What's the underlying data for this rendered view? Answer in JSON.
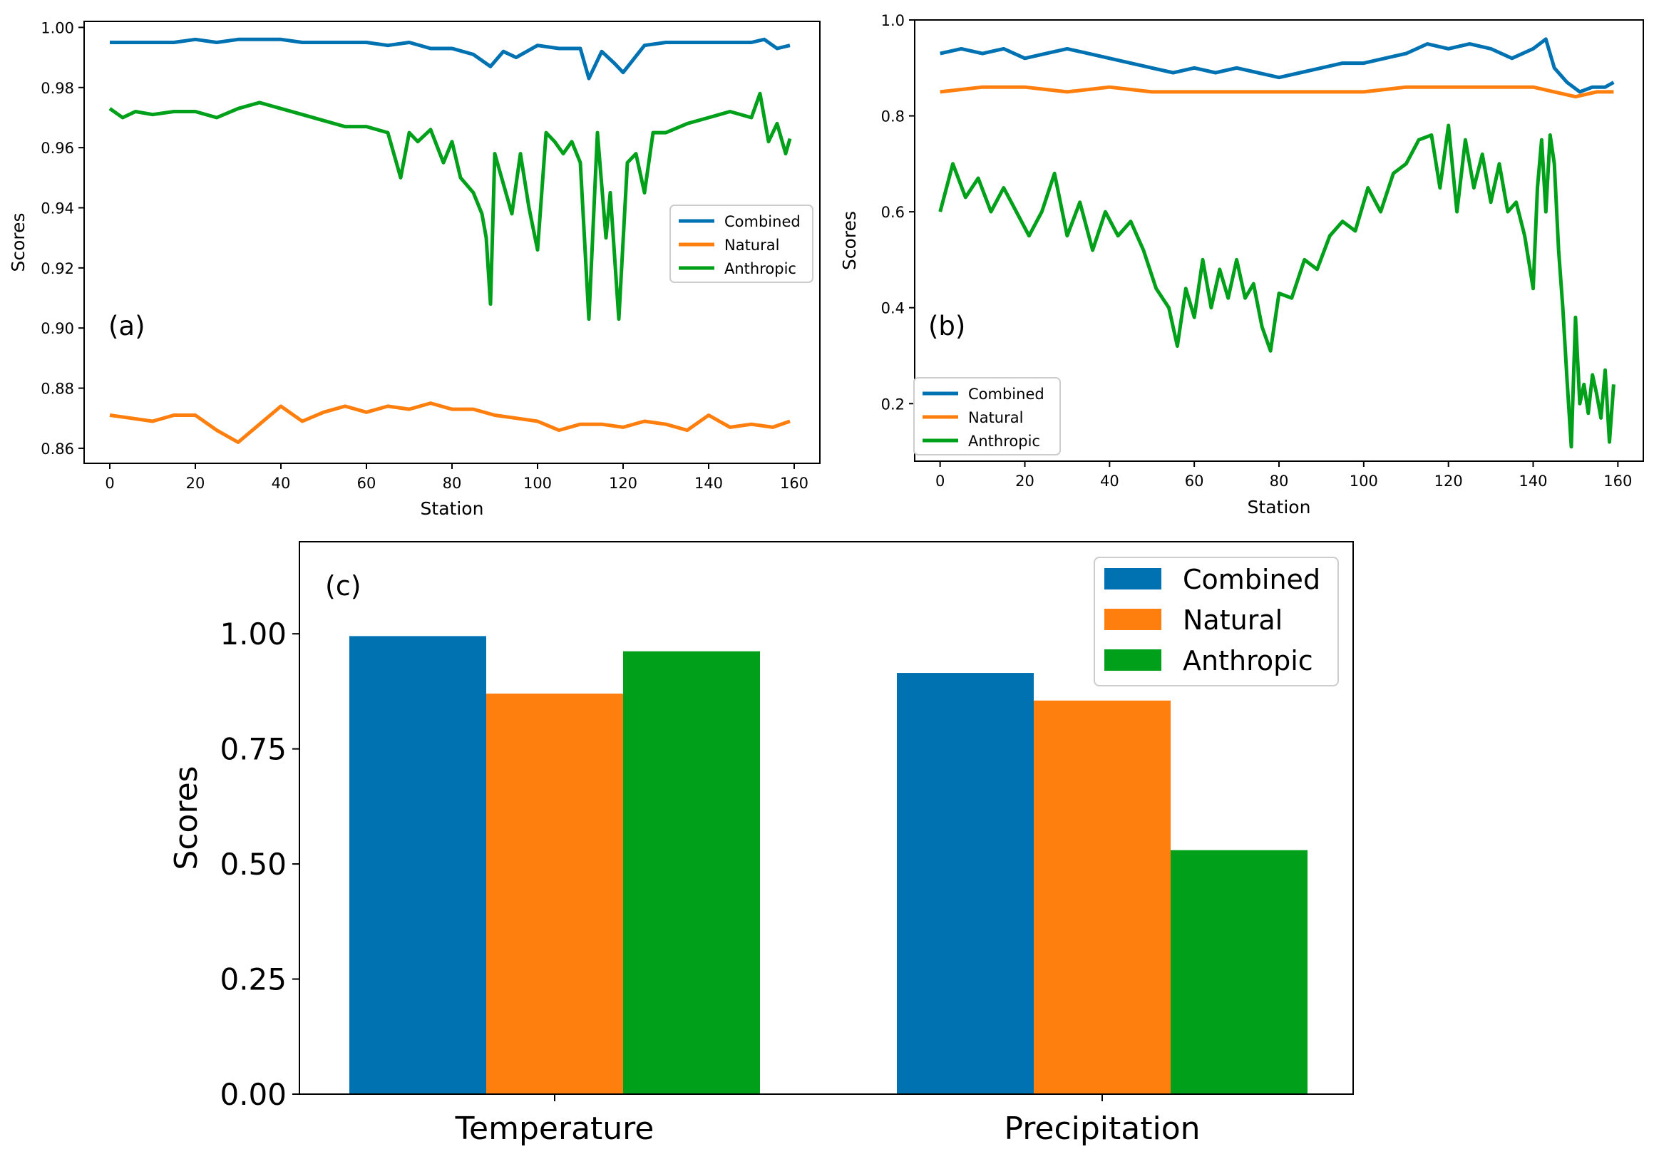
{
  "colors": {
    "Combined": "#0072b2",
    "Natural": "#ff7f0e",
    "Anthropic": "#00a01a"
  },
  "chart_data": [
    {
      "id": "a",
      "type": "line",
      "panel_label": "(a)",
      "xlabel": "Station",
      "ylabel": "Scores",
      "xlim": [
        -6,
        166
      ],
      "ylim": [
        0.855,
        1.002
      ],
      "xticks": [
        0,
        20,
        40,
        60,
        80,
        100,
        120,
        140,
        160
      ],
      "yticks": [
        0.86,
        0.88,
        0.9,
        0.92,
        0.94,
        0.96,
        0.98,
        1.0
      ],
      "ytick_labels": [
        "0.86",
        "0.88",
        "0.90",
        "0.92",
        "0.94",
        "0.96",
        "0.98",
        "1.00"
      ],
      "legend": "center-right",
      "series": [
        {
          "name": "Combined",
          "x": [
            0,
            5,
            10,
            15,
            20,
            25,
            30,
            35,
            40,
            45,
            50,
            55,
            60,
            65,
            70,
            75,
            80,
            85,
            89,
            92,
            95,
            100,
            105,
            110,
            112,
            115,
            118,
            120,
            125,
            130,
            135,
            140,
            145,
            150,
            153,
            156,
            159
          ],
          "values": [
            0.995,
            0.995,
            0.995,
            0.995,
            0.996,
            0.995,
            0.996,
            0.996,
            0.996,
            0.995,
            0.995,
            0.995,
            0.995,
            0.994,
            0.995,
            0.993,
            0.993,
            0.991,
            0.987,
            0.992,
            0.99,
            0.994,
            0.993,
            0.993,
            0.983,
            0.992,
            0.988,
            0.985,
            0.994,
            0.995,
            0.995,
            0.995,
            0.995,
            0.995,
            0.996,
            0.993,
            0.994
          ]
        },
        {
          "name": "Natural",
          "x": [
            0,
            5,
            10,
            15,
            20,
            25,
            30,
            35,
            40,
            45,
            50,
            55,
            60,
            65,
            70,
            75,
            80,
            85,
            90,
            95,
            100,
            105,
            110,
            115,
            120,
            125,
            130,
            135,
            140,
            145,
            150,
            155,
            159
          ],
          "values": [
            0.871,
            0.87,
            0.869,
            0.871,
            0.871,
            0.866,
            0.862,
            0.868,
            0.874,
            0.869,
            0.872,
            0.874,
            0.872,
            0.874,
            0.873,
            0.875,
            0.873,
            0.873,
            0.871,
            0.87,
            0.869,
            0.866,
            0.868,
            0.868,
            0.867,
            0.869,
            0.868,
            0.866,
            0.871,
            0.867,
            0.868,
            0.867,
            0.869
          ]
        },
        {
          "name": "Anthropic",
          "x": [
            0,
            3,
            6,
            10,
            15,
            20,
            25,
            30,
            35,
            40,
            45,
            50,
            55,
            60,
            65,
            68,
            70,
            72,
            75,
            78,
            80,
            82,
            85,
            87,
            88,
            89,
            90,
            92,
            94,
            96,
            98,
            100,
            102,
            104,
            106,
            108,
            110,
            112,
            114,
            116,
            117,
            119,
            121,
            123,
            125,
            127,
            130,
            135,
            140,
            145,
            150,
            152,
            154,
            156,
            158,
            159
          ],
          "values": [
            0.973,
            0.97,
            0.972,
            0.971,
            0.972,
            0.972,
            0.97,
            0.973,
            0.975,
            0.973,
            0.971,
            0.969,
            0.967,
            0.967,
            0.965,
            0.95,
            0.965,
            0.962,
            0.966,
            0.955,
            0.962,
            0.95,
            0.945,
            0.938,
            0.93,
            0.908,
            0.958,
            0.948,
            0.938,
            0.958,
            0.94,
            0.926,
            0.965,
            0.962,
            0.958,
            0.962,
            0.955,
            0.903,
            0.965,
            0.93,
            0.945,
            0.903,
            0.955,
            0.958,
            0.945,
            0.965,
            0.965,
            0.968,
            0.97,
            0.972,
            0.97,
            0.978,
            0.962,
            0.968,
            0.958,
            0.963
          ]
        }
      ]
    },
    {
      "id": "b",
      "type": "line",
      "panel_label": "(b)",
      "xlabel": "Station",
      "ylabel": "Scores",
      "xlim": [
        -6,
        166
      ],
      "ylim": [
        0.08,
        1.0
      ],
      "xticks": [
        0,
        20,
        40,
        60,
        80,
        100,
        120,
        140,
        160
      ],
      "yticks": [
        0.2,
        0.4,
        0.6,
        0.8,
        1.0
      ],
      "ytick_labels": [
        "0.2",
        "0.4",
        "0.6",
        "0.8",
        "1.0"
      ],
      "legend": "lower-left",
      "series": [
        {
          "name": "Combined",
          "x": [
            0,
            5,
            10,
            15,
            20,
            25,
            30,
            35,
            40,
            45,
            50,
            55,
            60,
            65,
            70,
            75,
            80,
            85,
            90,
            95,
            100,
            105,
            110,
            115,
            120,
            125,
            130,
            135,
            140,
            143,
            145,
            148,
            151,
            154,
            157,
            159
          ],
          "values": [
            0.93,
            0.94,
            0.93,
            0.94,
            0.92,
            0.93,
            0.94,
            0.93,
            0.92,
            0.91,
            0.9,
            0.89,
            0.9,
            0.89,
            0.9,
            0.89,
            0.88,
            0.89,
            0.9,
            0.91,
            0.91,
            0.92,
            0.93,
            0.95,
            0.94,
            0.95,
            0.94,
            0.92,
            0.94,
            0.96,
            0.9,
            0.87,
            0.85,
            0.86,
            0.86,
            0.87
          ]
        },
        {
          "name": "Natural",
          "x": [
            0,
            10,
            20,
            30,
            40,
            50,
            60,
            70,
            80,
            90,
            100,
            110,
            120,
            130,
            140,
            145,
            150,
            155,
            159
          ],
          "values": [
            0.85,
            0.86,
            0.86,
            0.85,
            0.86,
            0.85,
            0.85,
            0.85,
            0.85,
            0.85,
            0.85,
            0.86,
            0.86,
            0.86,
            0.86,
            0.85,
            0.84,
            0.85,
            0.85
          ]
        },
        {
          "name": "Anthropic",
          "x": [
            0,
            3,
            6,
            9,
            12,
            15,
            18,
            21,
            24,
            27,
            30,
            33,
            36,
            39,
            42,
            45,
            48,
            51,
            54,
            56,
            58,
            60,
            62,
            64,
            66,
            68,
            70,
            72,
            74,
            76,
            78,
            80,
            83,
            86,
            89,
            92,
            95,
            98,
            101,
            104,
            107,
            110,
            113,
            116,
            118,
            120,
            122,
            124,
            126,
            128,
            130,
            132,
            134,
            136,
            138,
            140,
            141,
            142,
            143,
            144,
            145,
            146,
            147,
            148,
            149,
            150,
            151,
            152,
            153,
            154,
            155,
            156,
            157,
            158,
            159
          ],
          "values": [
            0.6,
            0.7,
            0.63,
            0.67,
            0.6,
            0.65,
            0.6,
            0.55,
            0.6,
            0.68,
            0.55,
            0.62,
            0.52,
            0.6,
            0.55,
            0.58,
            0.52,
            0.44,
            0.4,
            0.32,
            0.44,
            0.38,
            0.5,
            0.4,
            0.48,
            0.42,
            0.5,
            0.42,
            0.45,
            0.36,
            0.31,
            0.43,
            0.42,
            0.5,
            0.48,
            0.55,
            0.58,
            0.56,
            0.65,
            0.6,
            0.68,
            0.7,
            0.75,
            0.76,
            0.65,
            0.78,
            0.6,
            0.75,
            0.65,
            0.72,
            0.62,
            0.7,
            0.6,
            0.62,
            0.55,
            0.44,
            0.65,
            0.75,
            0.6,
            0.76,
            0.7,
            0.52,
            0.4,
            0.25,
            0.11,
            0.38,
            0.2,
            0.24,
            0.18,
            0.26,
            0.22,
            0.17,
            0.27,
            0.12,
            0.24
          ]
        }
      ]
    },
    {
      "id": "c",
      "type": "bar",
      "panel_label": "(c)",
      "xlabel": "",
      "ylabel": "Scores",
      "ylim": [
        0,
        1.2
      ],
      "yticks": [
        0.0,
        0.25,
        0.5,
        0.75,
        1.0
      ],
      "ytick_labels": [
        "0.00",
        "0.25",
        "0.50",
        "0.75",
        "1.00"
      ],
      "categories": [
        "Temperature",
        "Precipitation"
      ],
      "legend": "upper-right",
      "series": [
        {
          "name": "Combined",
          "values": [
            0.995,
            0.915
          ]
        },
        {
          "name": "Natural",
          "values": [
            0.87,
            0.855
          ]
        },
        {
          "name": "Anthropic",
          "values": [
            0.962,
            0.53
          ]
        }
      ]
    }
  ]
}
